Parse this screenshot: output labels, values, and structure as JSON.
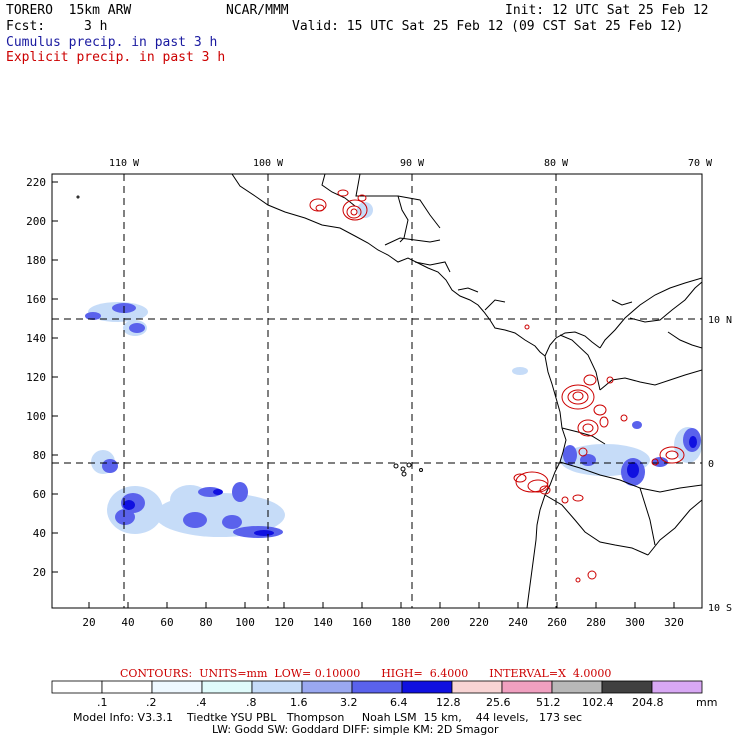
{
  "header": {
    "model": "TORERO  15km ARW",
    "org": "NCAR/MMM",
    "init": "Init: 12 UTC Sat 25 Feb 12",
    "fcst_label": "Fcst:",
    "fcst_value": "3 h",
    "valid": "Valid: 15 UTC Sat 25 Feb 12 (09 CST Sat 25 Feb 12)",
    "legend_cumulus": "Cumulus precip. in past 3 h",
    "legend_explicit": "Explicit precip. in past 3 h"
  },
  "map": {
    "lon_labels": [
      "110 W",
      "100 W",
      "90 W",
      "80 W",
      "70 W"
    ],
    "lat_labels": [
      "10 N",
      "0",
      "10 S"
    ],
    "y_ticks": [
      "220",
      "200",
      "180",
      "160",
      "140",
      "120",
      "100",
      "80",
      "60",
      "40",
      "20"
    ],
    "x_ticks": [
      "20",
      "40",
      "60",
      "80",
      "100",
      "120",
      "140",
      "160",
      "180",
      "200",
      "220",
      "240",
      "260",
      "280",
      "300",
      "320"
    ]
  },
  "contours_line": "CONTOURS:  UNITS=mm  LOW= 0.10000      HIGH=  6.4000      INTERVAL=X  4.0000",
  "colorbar": {
    "labels": [
      ".1",
      ".2",
      ".4",
      ".8",
      "1.6",
      "3.2",
      "6.4",
      "12.8",
      "25.6",
      "51.2",
      "102.4",
      "204.8"
    ],
    "unit": "mm",
    "colors": [
      "#ffffff",
      "#ffffff",
      "#eef8ff",
      "#e0fbfb",
      "#c6dcf8",
      "#9aa8f0",
      "#5a62ec",
      "#1010e0",
      "#f8d4d4",
      "#f0a0c0",
      "#b8b8b8",
      "#404040",
      "#d8a8f4"
    ]
  },
  "footer": {
    "line1": "Model Info: V3.3.1    Tiedtke YSU PBL   Thompson     Noah LSM  15 km,    44 levels,   173 sec",
    "line2": "LW: Godd SW: Goddard DIFF: simple KM: 2D Smagor"
  }
}
